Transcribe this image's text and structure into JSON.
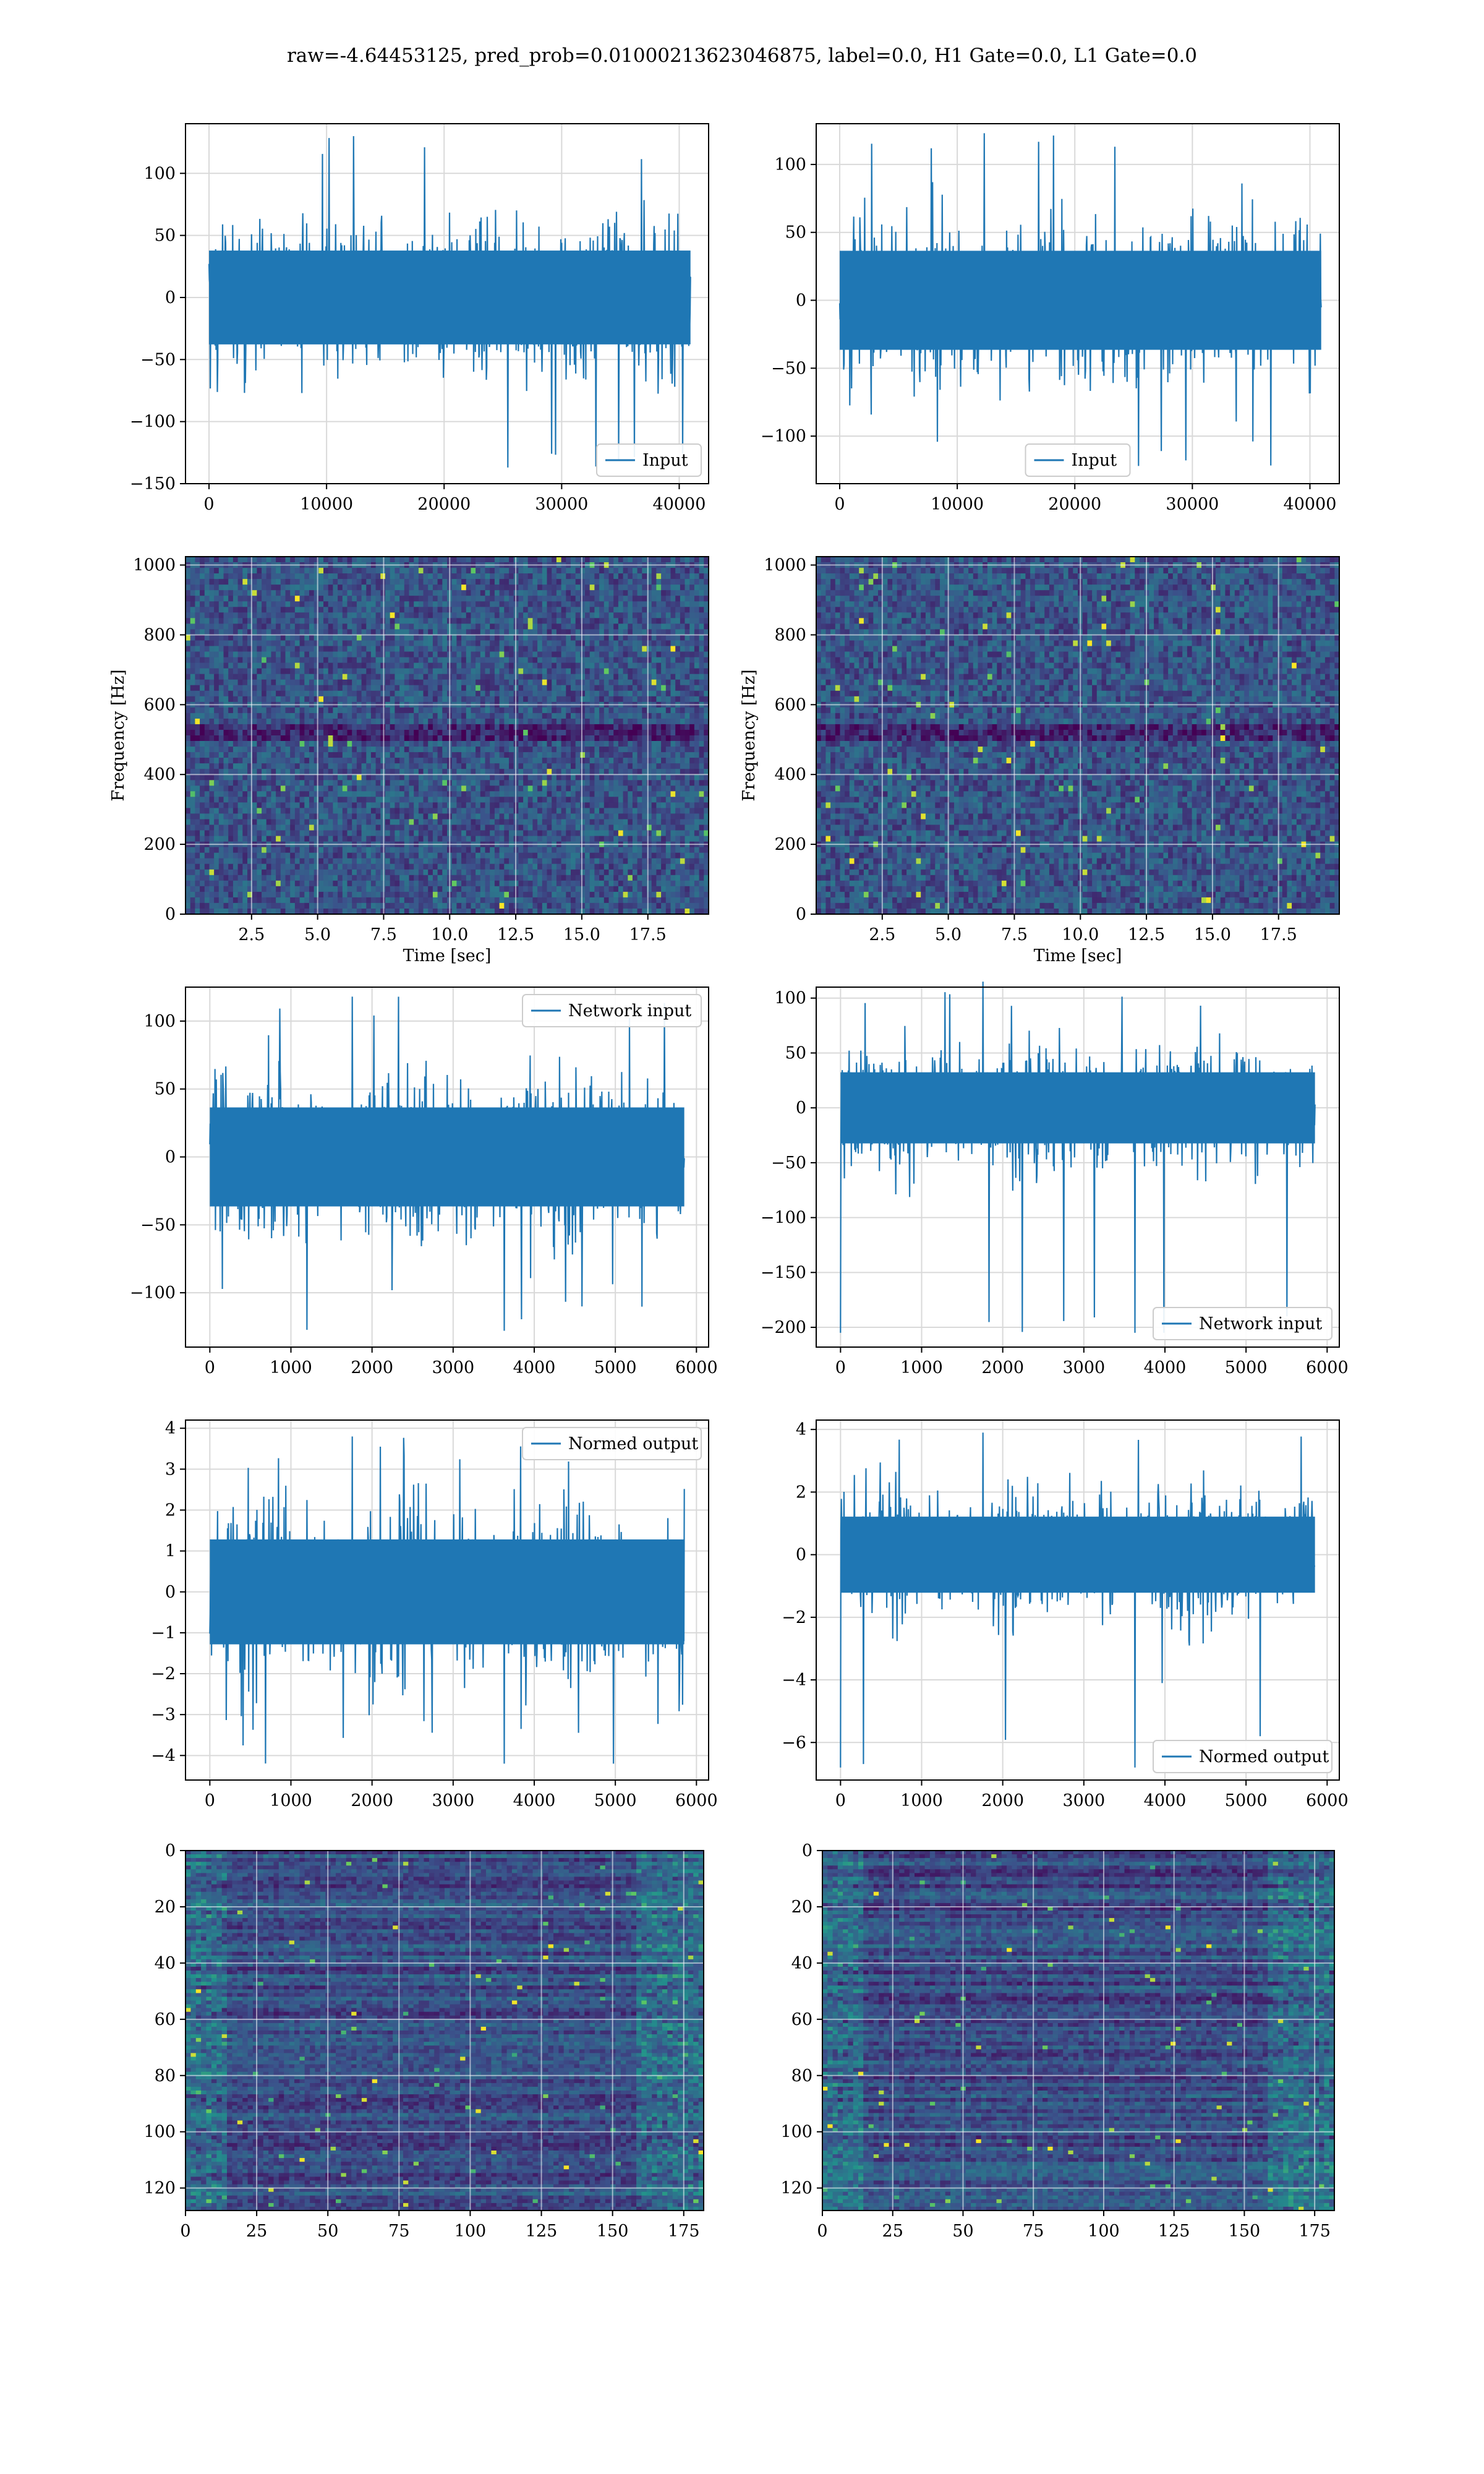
{
  "figure": {
    "suptitle": "raw=-4.64453125, pred_prob=0.01000213623046875, label=0.0, H1 Gate=0.0, L1 Gate=0.0"
  },
  "colors": {
    "series": "#1f77b4",
    "grid": "#d9d9d9",
    "axes": "#000000",
    "viridis_low": "#440154",
    "viridis_mid": "#21918c",
    "viridis_high": "#fde725"
  },
  "chart_data": [
    {
      "id": "input-h1",
      "type": "line",
      "signal": "white-noise",
      "xlim": [
        -2000,
        42500
      ],
      "ylim": [
        -150,
        140
      ],
      "xticks": [
        0,
        10000,
        20000,
        30000,
        40000
      ],
      "xtick_labels": [
        "0",
        "10000",
        "20000",
        "30000",
        "40000"
      ],
      "yticks": [
        -150,
        -100,
        -50,
        0,
        50,
        100
      ],
      "ytick_labels": [
        "−150",
        "−100",
        "−50",
        "0",
        "50",
        "100"
      ],
      "x_range": [
        0,
        40960
      ],
      "amplitude": 28,
      "peak_max": 130,
      "peak_min": -137,
      "series": [
        {
          "name": "Input"
        }
      ],
      "legend": "lower-right",
      "grid": true,
      "xlabel": "",
      "ylabel": ""
    },
    {
      "id": "input-l1",
      "type": "line",
      "signal": "white-noise",
      "xlim": [
        -2000,
        42500
      ],
      "ylim": [
        -135,
        130
      ],
      "xticks": [
        0,
        10000,
        20000,
        30000,
        40000
      ],
      "xtick_labels": [
        "0",
        "10000",
        "20000",
        "30000",
        "40000"
      ],
      "yticks": [
        -100,
        -50,
        0,
        50,
        100
      ],
      "ytick_labels": [
        "−100",
        "−50",
        "0",
        "50",
        "100"
      ],
      "x_range": [
        0,
        40960
      ],
      "amplitude": 27,
      "peak_max": 123,
      "peak_min": -122,
      "series": [
        {
          "name": "Input"
        }
      ],
      "legend": "lower-center",
      "grid": true,
      "xlabel": "",
      "ylabel": ""
    },
    {
      "id": "spectrogram-h1",
      "type": "heatmap",
      "pattern": "spectrogram",
      "xlim": [
        0,
        19.8
      ],
      "ylim": [
        0,
        1024
      ],
      "xticks": [
        2.5,
        5.0,
        7.5,
        10.0,
        12.5,
        15.0,
        17.5
      ],
      "xtick_labels": [
        "2.5",
        "5.0",
        "7.5",
        "10.0",
        "12.5",
        "15.0",
        "17.5"
      ],
      "yticks": [
        0,
        200,
        400,
        600,
        800,
        1000
      ],
      "ytick_labels": [
        "0",
        "200",
        "400",
        "600",
        "800",
        "1000"
      ],
      "xlabel": "Time [sec]",
      "ylabel": "Frequency [Hz]",
      "grid": true
    },
    {
      "id": "spectrogram-l1",
      "type": "heatmap",
      "pattern": "spectrogram",
      "xlim": [
        0,
        19.8
      ],
      "ylim": [
        0,
        1024
      ],
      "xticks": [
        2.5,
        5.0,
        7.5,
        10.0,
        12.5,
        15.0,
        17.5
      ],
      "xtick_labels": [
        "2.5",
        "5.0",
        "7.5",
        "10.0",
        "12.5",
        "15.0",
        "17.5"
      ],
      "yticks": [
        0,
        200,
        400,
        600,
        800,
        1000
      ],
      "ytick_labels": [
        "0",
        "200",
        "400",
        "600",
        "800",
        "1000"
      ],
      "xlabel": "Time [sec]",
      "ylabel": "Frequency [Hz]",
      "grid": true
    },
    {
      "id": "network-input-h1",
      "type": "line",
      "signal": "whitened",
      "xlim": [
        -300,
        6150
      ],
      "ylim": [
        -140,
        125
      ],
      "xticks": [
        0,
        1000,
        2000,
        3000,
        4000,
        5000,
        6000
      ],
      "xtick_labels": [
        "0",
        "1000",
        "2000",
        "3000",
        "4000",
        "5000",
        "6000"
      ],
      "yticks": [
        -100,
        -50,
        0,
        50,
        100
      ],
      "ytick_labels": [
        "−100",
        "−50",
        "0",
        "50",
        "100"
      ],
      "x_range": [
        0,
        5850
      ],
      "amplitude": 27,
      "peak_max": 118,
      "peak_min": -128,
      "series": [
        {
          "name": "Network input"
        }
      ],
      "legend": "upper-right",
      "grid": true,
      "xlabel": "",
      "ylabel": ""
    },
    {
      "id": "network-input-l1",
      "type": "line",
      "signal": "whitened-spike",
      "xlim": [
        -300,
        6150
      ],
      "ylim": [
        -218,
        110
      ],
      "xticks": [
        0,
        1000,
        2000,
        3000,
        4000,
        5000,
        6000
      ],
      "xtick_labels": [
        "0",
        "1000",
        "2000",
        "3000",
        "4000",
        "5000",
        "6000"
      ],
      "yticks": [
        -200,
        -150,
        -100,
        -50,
        0,
        50,
        100
      ],
      "ytick_labels": [
        "−200",
        "−150",
        "−100",
        "−50",
        "0",
        "50",
        "100"
      ],
      "x_range": [
        0,
        5850
      ],
      "amplitude": 24,
      "peak_max": 115,
      "peak_min": -205,
      "series": [
        {
          "name": "Network input"
        }
      ],
      "legend": "lower-right",
      "grid": true,
      "xlabel": "",
      "ylabel": ""
    },
    {
      "id": "normed-output-h1",
      "type": "line",
      "signal": "whitened",
      "xlim": [
        -300,
        6150
      ],
      "ylim": [
        -4.6,
        4.2
      ],
      "xticks": [
        0,
        1000,
        2000,
        3000,
        4000,
        5000,
        6000
      ],
      "xtick_labels": [
        "0",
        "1000",
        "2000",
        "3000",
        "4000",
        "5000",
        "6000"
      ],
      "yticks": [
        -4,
        -3,
        -2,
        -1,
        0,
        1,
        2,
        3,
        4
      ],
      "ytick_labels": [
        "−4",
        "−3",
        "−2",
        "−1",
        "0",
        "1",
        "2",
        "3",
        "4"
      ],
      "x_range": [
        0,
        5850
      ],
      "amplitude": 0.95,
      "peak_max": 3.8,
      "peak_min": -4.2,
      "series": [
        {
          "name": "Normed output"
        }
      ],
      "legend": "upper-right",
      "grid": true,
      "xlabel": "",
      "ylabel": ""
    },
    {
      "id": "normed-output-l1",
      "type": "line",
      "signal": "whitened-spike",
      "xlim": [
        -300,
        6150
      ],
      "ylim": [
        -7.2,
        4.3
      ],
      "xticks": [
        0,
        1000,
        2000,
        3000,
        4000,
        5000,
        6000
      ],
      "xtick_labels": [
        "0",
        "1000",
        "2000",
        "3000",
        "4000",
        "5000",
        "6000"
      ],
      "yticks": [
        -6,
        -4,
        -2,
        0,
        2,
        4
      ],
      "ytick_labels": [
        "−6",
        "−4",
        "−2",
        "0",
        "2",
        "4"
      ],
      "x_range": [
        0,
        5850
      ],
      "amplitude": 0.9,
      "peak_max": 3.9,
      "peak_min": -6.8,
      "series": [
        {
          "name": "Normed output"
        }
      ],
      "legend": "lower-right",
      "grid": true,
      "xlabel": "",
      "ylabel": ""
    },
    {
      "id": "feature-map-h1",
      "type": "heatmap",
      "pattern": "feature-map",
      "xlim": [
        0,
        182
      ],
      "ylim": [
        128,
        0
      ],
      "xticks": [
        0,
        25,
        50,
        75,
        100,
        125,
        150,
        175
      ],
      "xtick_labels": [
        "0",
        "25",
        "50",
        "75",
        "100",
        "125",
        "150",
        "175"
      ],
      "yticks": [
        0,
        20,
        40,
        60,
        80,
        100,
        120
      ],
      "ytick_labels": [
        "0",
        "20",
        "40",
        "60",
        "80",
        "100",
        "120"
      ],
      "xlabel": "",
      "ylabel": "",
      "grid": true
    },
    {
      "id": "feature-map-l1",
      "type": "heatmap",
      "pattern": "feature-map",
      "xlim": [
        0,
        182
      ],
      "ylim": [
        128,
        0
      ],
      "xticks": [
        0,
        25,
        50,
        75,
        100,
        125,
        150,
        175
      ],
      "xtick_labels": [
        "0",
        "25",
        "50",
        "75",
        "100",
        "125",
        "150",
        "175"
      ],
      "yticks": [
        0,
        20,
        40,
        60,
        80,
        100,
        120
      ],
      "ytick_labels": [
        "0",
        "20",
        "40",
        "60",
        "80",
        "100",
        "120"
      ],
      "xlabel": "",
      "ylabel": "",
      "grid": true
    }
  ]
}
